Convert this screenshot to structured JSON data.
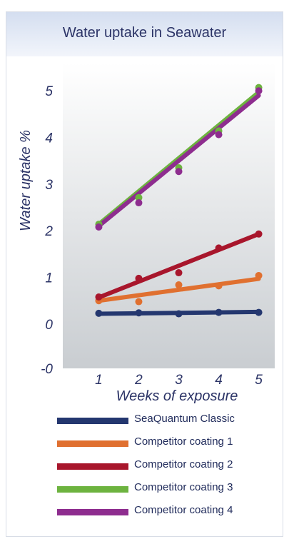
{
  "chart_data": {
    "type": "scatter",
    "title": "Water uptake in Seawater",
    "xlabel": "Weeks of exposure",
    "ylabel": "Water uptake %",
    "x": [
      1,
      2,
      3,
      4,
      5
    ],
    "x_ticks": [
      "1",
      "2",
      "3",
      "4",
      "5"
    ],
    "y_ticks": [
      "-0",
      "0",
      "1",
      "2",
      "3",
      "4",
      "5"
    ],
    "xlim": [
      0.1,
      5.4
    ],
    "ylim": [
      -0.95,
      5.6
    ],
    "grid": false,
    "legend_position": "bottom",
    "trendlines": true,
    "series": [
      {
        "name": "SeaQuantum Classic",
        "color": "#24376f",
        "values": [
          0.23,
          0.24,
          0.22,
          0.25,
          0.25
        ],
        "trend": [
          0.22,
          0.26
        ]
      },
      {
        "name": "Competitor coating 1",
        "color": "#e07030",
        "values": [
          0.5,
          0.48,
          0.84,
          0.82,
          1.04
        ],
        "trend": [
          0.5,
          0.97
        ]
      },
      {
        "name": "Competitor coating 2",
        "color": "#a8162c",
        "values": [
          0.58,
          0.98,
          1.1,
          1.63,
          1.93
        ],
        "trend": [
          0.57,
          1.93
        ]
      },
      {
        "name": "Competitor coating 3",
        "color": "#6db33f",
        "values": [
          2.14,
          2.71,
          3.35,
          4.14,
          5.07
        ],
        "trend": [
          2.14,
          4.97
        ]
      },
      {
        "name": "Competitor coating 4",
        "color": "#8e2d8f",
        "values": [
          2.08,
          2.6,
          3.27,
          4.06,
          5.0
        ],
        "trend": [
          2.1,
          4.9
        ]
      }
    ]
  }
}
